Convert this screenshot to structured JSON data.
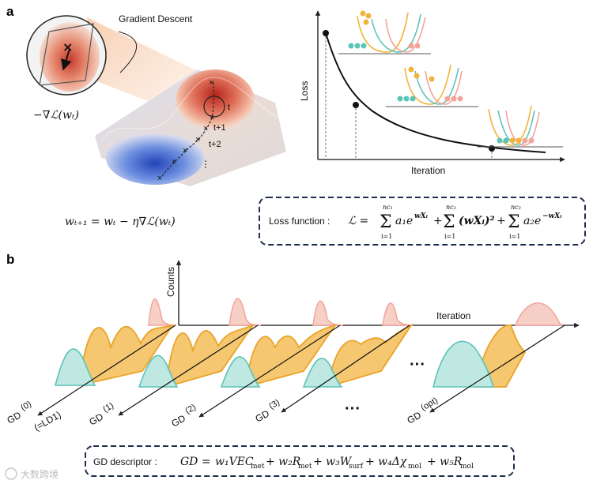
{
  "panel_a": {
    "label": "a",
    "callout_label": "Gradient Descent",
    "neg_gradient": "−∇ℒ(wₜ)",
    "step_labels": [
      "t",
      "t+1",
      "t+2"
    ],
    "ellipsis": "⋮",
    "update_rule": "wₜ₊₁ = wₜ − η∇ℒ(wₜ)",
    "loss_plot": {
      "ylabel": "Loss",
      "xlabel": "Iteration"
    },
    "loss_function_label": "Loss function :",
    "loss_function_expr": "ℒ = Σ_{i=1}^{n_{c1}} a₁e^{wXᵢ} + Σ_{i=1}^{n_{c2}} (wXᵢ)² + Σ_{i=1}^{n_{c3}} a₂e^{−wXᵢ}",
    "loss_terms": {
      "eq": "ℒ =",
      "sum": "Σ",
      "lower": "i=1",
      "upper1": "nc₁",
      "upper2": "nc₂",
      "upper3": "nc₃",
      "term1": "a₁e",
      "exp1": "wXᵢ",
      "plus": "+",
      "term2": "(wXᵢ)²",
      "term3": "a₂e",
      "exp3": "−wXᵢ"
    }
  },
  "panel_b": {
    "label": "b",
    "counts_label": "Counts",
    "iteration_label": "Iteration",
    "gd_base": "GD",
    "gd_sups": [
      "(0)",
      "(1)",
      "(2)",
      "(3)",
      "(opt)"
    ],
    "ld1_note": "(=LD1)",
    "ellipsis": "···",
    "descriptor_label": "GD descriptor :",
    "descriptor_expr": "GD = w₁VECmet + w₂Rmet + w₃Wsurf + w₄Δχmol + w₅Rmol",
    "descriptor_terms": {
      "lhs": "GD =",
      "t1": "w₁VEC",
      "s1": "met",
      "t2": "+ w₂R",
      "s2": "met",
      "t3": "+ w₃W",
      "s3": "surf",
      "t4": "+ w₄Δχ",
      "s4": "mol",
      "t5": "+ w₅R",
      "s5": "mol"
    }
  },
  "watermark": "大数跨境",
  "colors": {
    "box_border": "#1f2d4f",
    "red_peak": "#c8372d",
    "blue_well": "#3c63c9",
    "teal": "#5cc4b8",
    "orange": "#f0b43c",
    "pink": "#f2a49a"
  }
}
